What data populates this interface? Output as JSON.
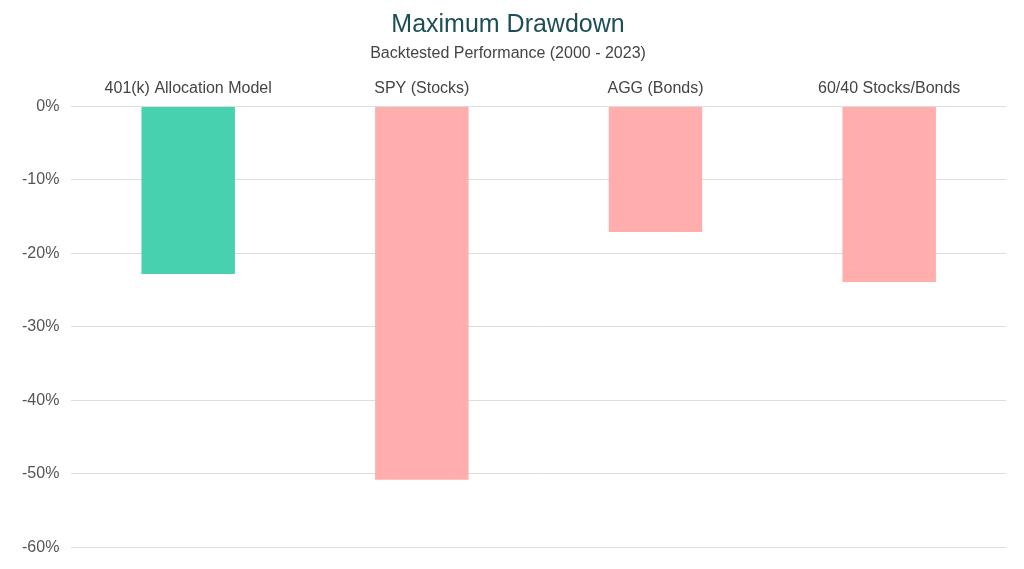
{
  "chart_data": {
    "type": "bar",
    "title": "Maximum Drawdown",
    "subtitle": "Backtested Performance (2000 - 2023)",
    "categories": [
      "401(k) Allocation Model",
      "SPY (Stocks)",
      "AGG (Bonds)",
      "60/40 Stocks/Bonds"
    ],
    "values": [
      -22.8,
      -50.8,
      -17.1,
      -23.9
    ],
    "colors": [
      "#48d1ae",
      "#ffadad",
      "#ffadad",
      "#ffadad"
    ],
    "ylim": [
      -60,
      0
    ],
    "yticks": [
      {
        "value": 0,
        "label": "0%"
      },
      {
        "value": -10,
        "label": "-10%"
      },
      {
        "value": -20,
        "label": "-20%"
      },
      {
        "value": -30,
        "label": "-30%"
      },
      {
        "value": -40,
        "label": "-40%"
      },
      {
        "value": -50,
        "label": "-50%"
      },
      {
        "value": -60,
        "label": "-60%"
      }
    ],
    "grid": true
  }
}
